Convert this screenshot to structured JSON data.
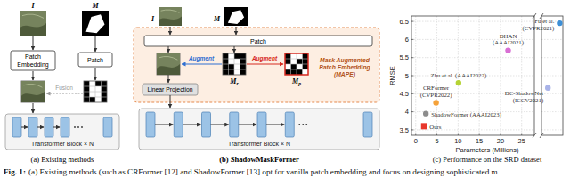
{
  "chart_data": {
    "type": "scatter",
    "title": "(c) Performance on the SRD dataset",
    "x_label": "Parameters (Millions)",
    "y_label": "RMSE",
    "xlim": [
      -1,
      190
    ],
    "axis_break": [
      28,
      170
    ],
    "xticks": [
      0,
      5,
      10,
      15,
      20,
      25
    ],
    "ylim": [
      3.35,
      6.65
    ],
    "yticks": [
      3.5,
      4,
      4.5,
      5,
      5.5,
      6,
      6.5
    ],
    "grid": true,
    "series": [
      {
        "name": "Ours",
        "color": "#e8372c",
        "marker": "square",
        "x": [
          2.0
        ],
        "values": [
          3.6
        ]
      },
      {
        "name": "ShadowFormer (AAAI2023)",
        "color": "#8c8c8c",
        "marker": "circle",
        "x": [
          2.4
        ],
        "values": [
          3.95
        ]
      },
      {
        "name": "CRFormer (CVPR2022)",
        "color": "#f5a23a",
        "marker": "circle",
        "x": [
          4.8
        ],
        "values": [
          4.25
        ]
      },
      {
        "name": "Zhu et al. (AAAI2022)",
        "color": "#b5d334",
        "marker": "circle",
        "x": [
          10.1
        ],
        "values": [
          4.8
        ]
      },
      {
        "name": "DHAN (AAAI2021)",
        "color": "#d96fd4",
        "marker": "circle",
        "x": [
          21.8
        ],
        "values": [
          5.7
        ]
      },
      {
        "name": "DC-ShadowNet (ICCV2021)",
        "color": "#a9b3e8",
        "marker": "circle",
        "x": [
          176
        ],
        "values": [
          4.66
        ]
      },
      {
        "name": "Fu et al. (CVPR2021)",
        "color": "#3d8fd6",
        "marker": "circle",
        "x": [
          187
        ],
        "values": [
          6.45
        ]
      }
    ]
  },
  "panels": {
    "a": {
      "caption": "(a) Existing methods",
      "image_label": "I",
      "mask_label": "M",
      "patch_embedding": "Patch Embedding",
      "patch": "Patch",
      "fusion": "Fusion",
      "transformer": "Transformer Block × N"
    },
    "b": {
      "caption": "(b) ShadowMaskFormer",
      "image_label": "I",
      "mask_label": "M",
      "patch": "Patch",
      "region": "Mask Augmented Patch Embedding (MAPE)",
      "augment_left": "Augment",
      "augment_right": "Augment",
      "mask_r": {
        "base": "M",
        "sub": "r"
      },
      "mask_p": {
        "base": "M",
        "sub": "p"
      },
      "linear_projection": "Linear Projection",
      "transformer": "Transformer Block × N"
    }
  },
  "caption": {
    "lead": "Fig. 1:",
    "text": "(a) Existing methods (such as CRFormer [12] and ShadowFormer [13] opt for vanilla patch embedding and focus on designing sophisticated m"
  }
}
